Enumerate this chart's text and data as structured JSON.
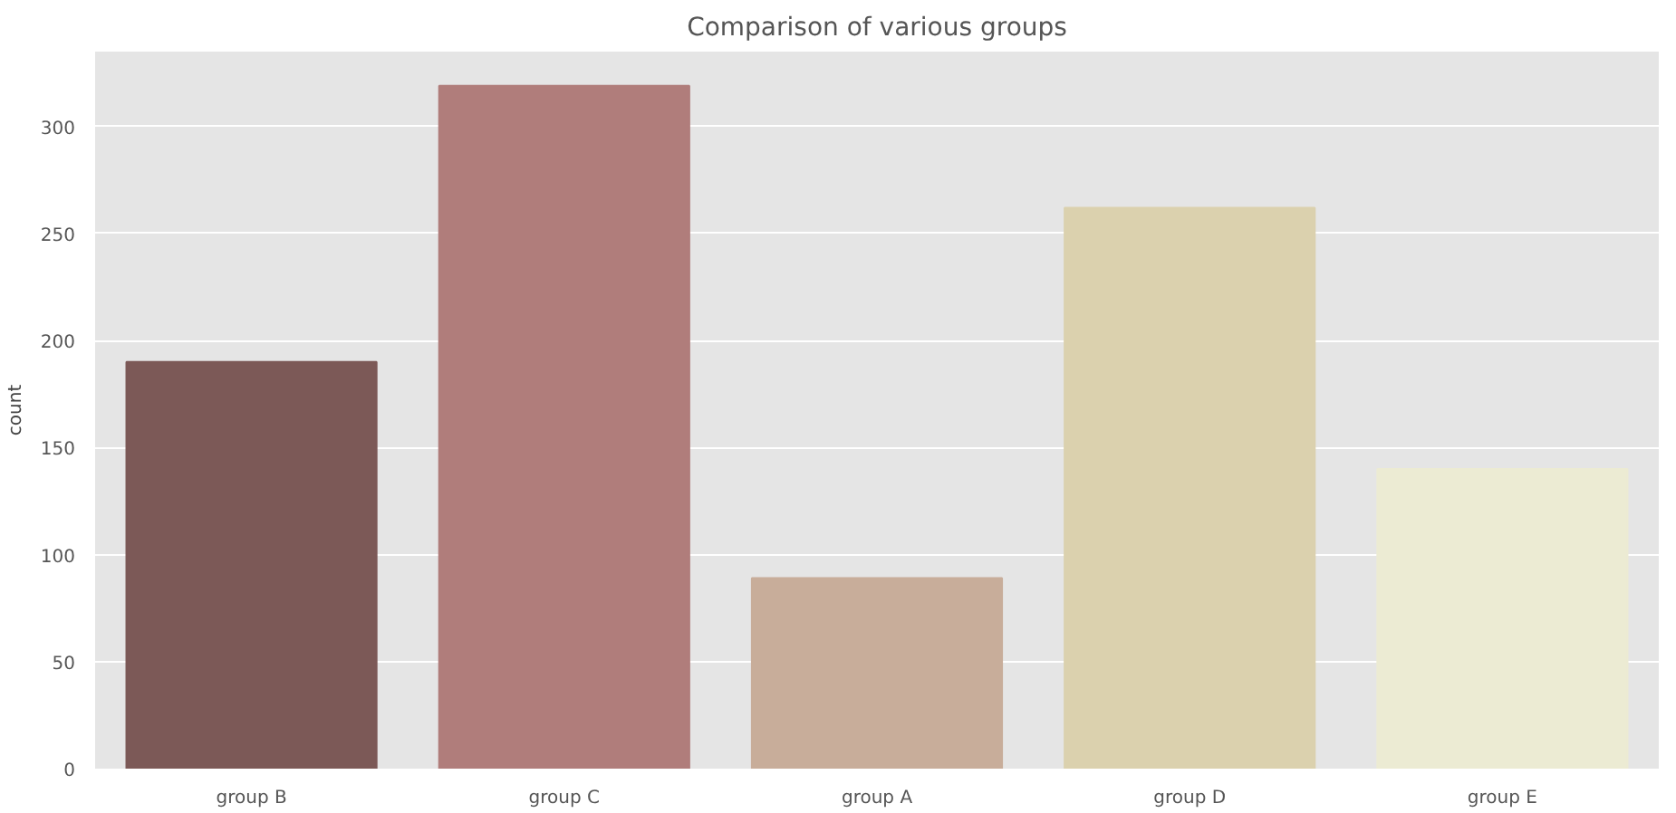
{
  "chart_data": {
    "type": "bar",
    "title": "Comparison of various groups",
    "ylabel": "count",
    "categories": [
      "group B",
      "group C",
      "group A",
      "group D",
      "group E"
    ],
    "values": [
      190,
      319,
      89,
      262,
      140
    ],
    "colors": [
      "#7c5957",
      "#b07d7b",
      "#c8ad9a",
      "#dbd1ae",
      "#ecebd3"
    ],
    "ylim": [
      0,
      335
    ],
    "yticks": [
      0,
      50,
      100,
      150,
      200,
      250,
      300
    ],
    "grid": "y"
  }
}
